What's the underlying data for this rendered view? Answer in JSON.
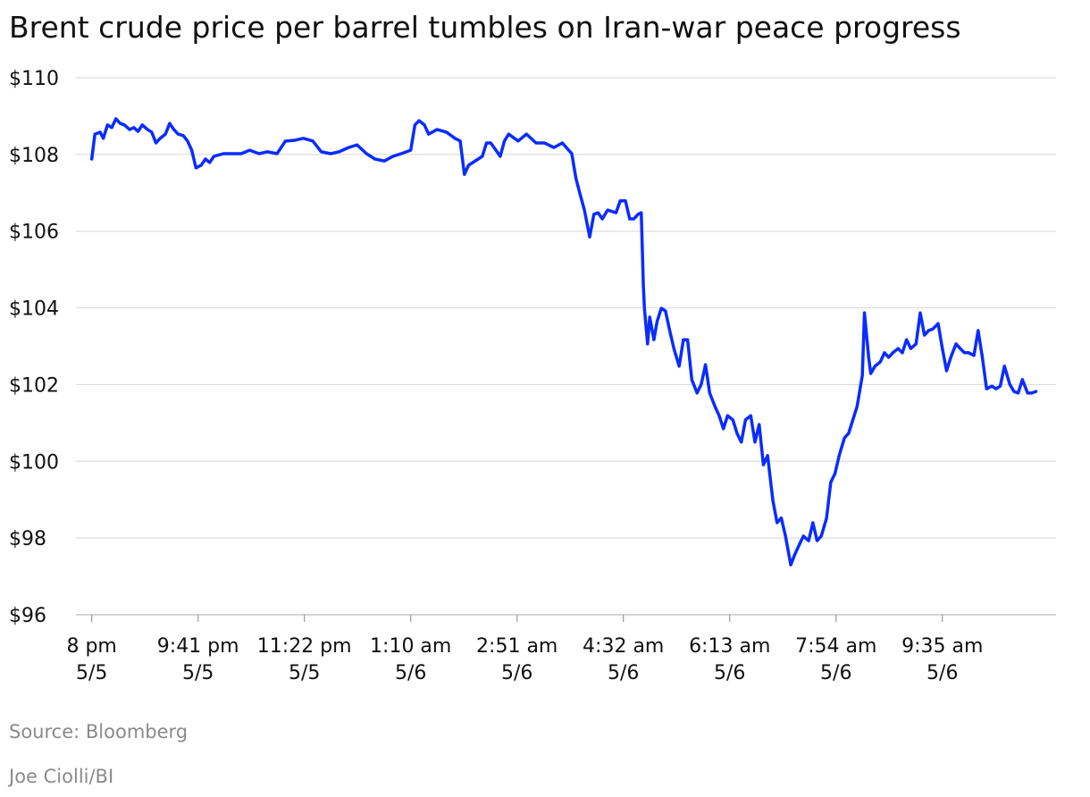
{
  "chart_data": {
    "type": "line",
    "title": "Brent crude price per barrel tumbles on Iran-war peace progress",
    "source": "Source: Bloomberg",
    "credit": "Joe Ciolli/BI",
    "x": [
      0,
      3,
      8,
      11,
      15,
      19,
      23,
      27,
      31,
      36,
      40,
      44,
      48,
      53,
      57,
      61,
      65,
      70,
      74,
      78,
      82,
      87,
      91,
      95,
      99,
      104,
      108,
      112,
      116,
      125,
      133,
      142,
      150,
      159,
      167,
      176,
      184,
      193,
      201,
      210,
      218,
      227,
      235,
      244,
      252,
      261,
      269,
      278,
      286,
      294,
      303,
      307,
      311,
      316,
      320,
      328,
      337,
      345,
      350,
      354,
      358,
      362,
      371,
      375,
      379,
      384,
      388,
      392,
      396,
      405,
      413,
      422,
      430,
      439,
      447,
      456,
      460,
      464,
      468,
      473,
      477,
      481,
      485,
      490,
      498,
      502,
      507,
      511,
      515,
      519,
      522,
      524,
      525,
      528,
      530,
      534,
      537,
      541,
      545,
      549,
      553,
      558,
      562,
      566,
      570,
      575,
      579,
      583,
      587,
      592,
      596,
      600,
      604,
      609,
      613,
      617,
      621,
      626,
      630,
      634,
      638,
      642,
      647,
      651,
      655,
      659,
      664,
      668,
      672,
      676,
      681,
      685,
      689,
      693,
      698,
      702,
      706,
      710,
      715,
      719,
      723,
      727,
      732,
      734,
      738,
      740,
      744,
      749,
      753,
      757,
      761,
      766,
      770,
      774,
      778,
      783,
      787,
      791,
      795,
      799,
      804,
      808,
      812,
      816,
      821,
      825,
      829,
      833,
      838,
      842,
      846,
      850,
      855,
      859,
      863,
      867,
      872,
      876,
      880,
      884,
      889,
      893,
      897
    ],
    "series": [
      {
        "name": "Brent crude",
        "color": "#0a2cff",
        "values": [
          107.88,
          108.53,
          108.58,
          108.42,
          108.77,
          108.7,
          108.93,
          108.81,
          108.77,
          108.65,
          108.7,
          108.6,
          108.77,
          108.65,
          108.58,
          108.3,
          108.42,
          108.53,
          108.81,
          108.65,
          108.53,
          108.49,
          108.35,
          108.11,
          107.65,
          107.72,
          107.88,
          107.79,
          107.95,
          108.02,
          108.02,
          108.02,
          108.11,
          108.02,
          108.07,
          108.02,
          108.35,
          108.37,
          108.42,
          108.35,
          108.07,
          108.02,
          108.07,
          108.18,
          108.25,
          108.02,
          107.88,
          107.83,
          107.95,
          108.02,
          108.11,
          108.77,
          108.88,
          108.77,
          108.53,
          108.65,
          108.58,
          108.42,
          108.35,
          107.48,
          107.72,
          107.79,
          107.95,
          108.3,
          108.3,
          108.11,
          107.95,
          108.35,
          108.53,
          108.35,
          108.53,
          108.3,
          108.3,
          108.18,
          108.3,
          108.02,
          107.37,
          106.95,
          106.55,
          105.85,
          106.44,
          106.48,
          106.32,
          106.55,
          106.48,
          106.79,
          106.79,
          106.32,
          106.32,
          106.44,
          106.48,
          104.57,
          103.99,
          103.06,
          103.76,
          103.17,
          103.64,
          103.99,
          103.92,
          103.41,
          102.94,
          102.48,
          103.17,
          103.17,
          102.13,
          101.78,
          102.01,
          102.52,
          101.78,
          101.43,
          101.19,
          100.85,
          101.19,
          101.08,
          100.73,
          100.5,
          101.08,
          101.19,
          100.5,
          100.96,
          99.91,
          100.15,
          98.98,
          98.4,
          98.52,
          98.05,
          97.3,
          97.58,
          97.82,
          98.05,
          97.93,
          98.4,
          97.93,
          98.05,
          98.52,
          99.45,
          99.68,
          100.15,
          100.61,
          100.73,
          101.08,
          101.43,
          102.24,
          103.87,
          102.71,
          102.29,
          102.48,
          102.59,
          102.83,
          102.71,
          102.83,
          102.94,
          102.83,
          103.17,
          102.94,
          103.06,
          103.87,
          103.29,
          103.41,
          103.45,
          103.59,
          102.94,
          102.36,
          102.71,
          103.06,
          102.94,
          102.83,
          102.83,
          102.76,
          103.41,
          102.71,
          101.89,
          101.96,
          101.89,
          101.96,
          102.48,
          102.01,
          101.82,
          101.78,
          102.13,
          101.78,
          101.78,
          101.82
        ]
      }
    ],
    "xlim": [
      -15,
      916
    ],
    "xticks": [
      {
        "value": 0,
        "label": "8 pm\n5/5"
      },
      {
        "value": 101,
        "label": "9:41 pm\n5/5"
      },
      {
        "value": 202,
        "label": "11:22 pm\n5/5"
      },
      {
        "value": 303,
        "label": "1:10 am\n5/6"
      },
      {
        "value": 404,
        "label": "2:51 am\n5/6"
      },
      {
        "value": 505,
        "label": "4:32 am\n5/6"
      },
      {
        "value": 606,
        "label": "6:13 am\n5/6"
      },
      {
        "value": 707,
        "label": "7:54 am\n5/6"
      },
      {
        "value": 808,
        "label": "9:35 am\n5/6"
      }
    ],
    "ylim": [
      96,
      110
    ],
    "yticks": [
      {
        "value": 96,
        "label": "$96"
      },
      {
        "value": 98,
        "label": "$98"
      },
      {
        "value": 100,
        "label": "$100"
      },
      {
        "value": 102,
        "label": "$102"
      },
      {
        "value": 104,
        "label": "$104"
      },
      {
        "value": 106,
        "label": "$106"
      },
      {
        "value": 108,
        "label": "$108"
      },
      {
        "value": 110,
        "label": "$110"
      }
    ],
    "grid": true
  }
}
